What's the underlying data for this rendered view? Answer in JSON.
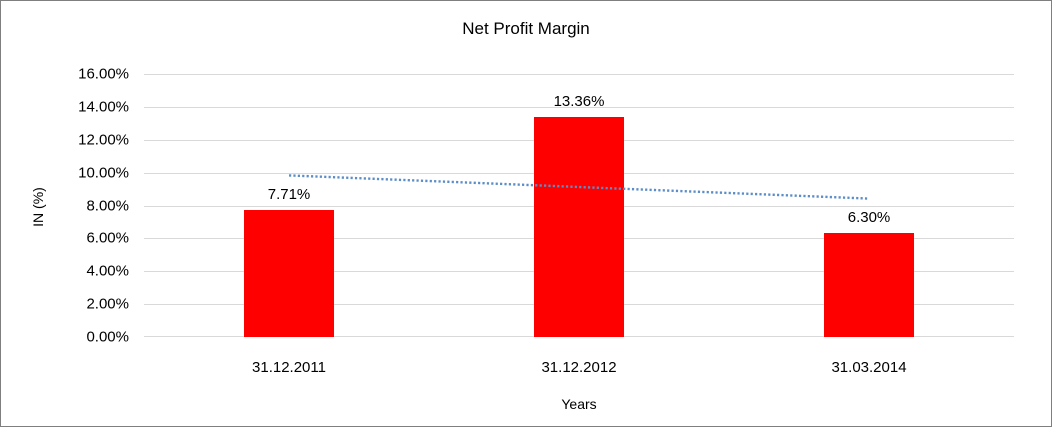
{
  "chart_data": {
    "type": "bar",
    "title": "Net Profit Margin",
    "xlabel": "Years",
    "ylabel": "IN (%)",
    "categories": [
      "31.12.2011",
      "31.12.2012",
      "31.03.2014"
    ],
    "values": [
      7.71,
      13.36,
      6.3
    ],
    "data_labels": [
      "7.71%",
      "13.36%",
      "6.30%"
    ],
    "ylim": [
      0,
      16
    ],
    "ytick_step": 2,
    "ytick_labels": [
      "0.00%",
      "2.00%",
      "4.00%",
      "6.00%",
      "8.00%",
      "10.00%",
      "12.00%",
      "14.00%",
      "16.00%"
    ],
    "ytick_values": [
      0,
      2,
      4,
      6,
      8,
      10,
      12,
      14,
      16
    ],
    "grid": true,
    "legend": "none",
    "bar_color": "#ff0000",
    "gridline_color": "#d9d9d9",
    "text_color": "#000000",
    "frame_border_color": "#7f7f7f",
    "trendline": {
      "type": "linear",
      "style": "dotted",
      "color": "#5b8dc8",
      "start_value": 9.83,
      "end_value": 8.42
    }
  }
}
